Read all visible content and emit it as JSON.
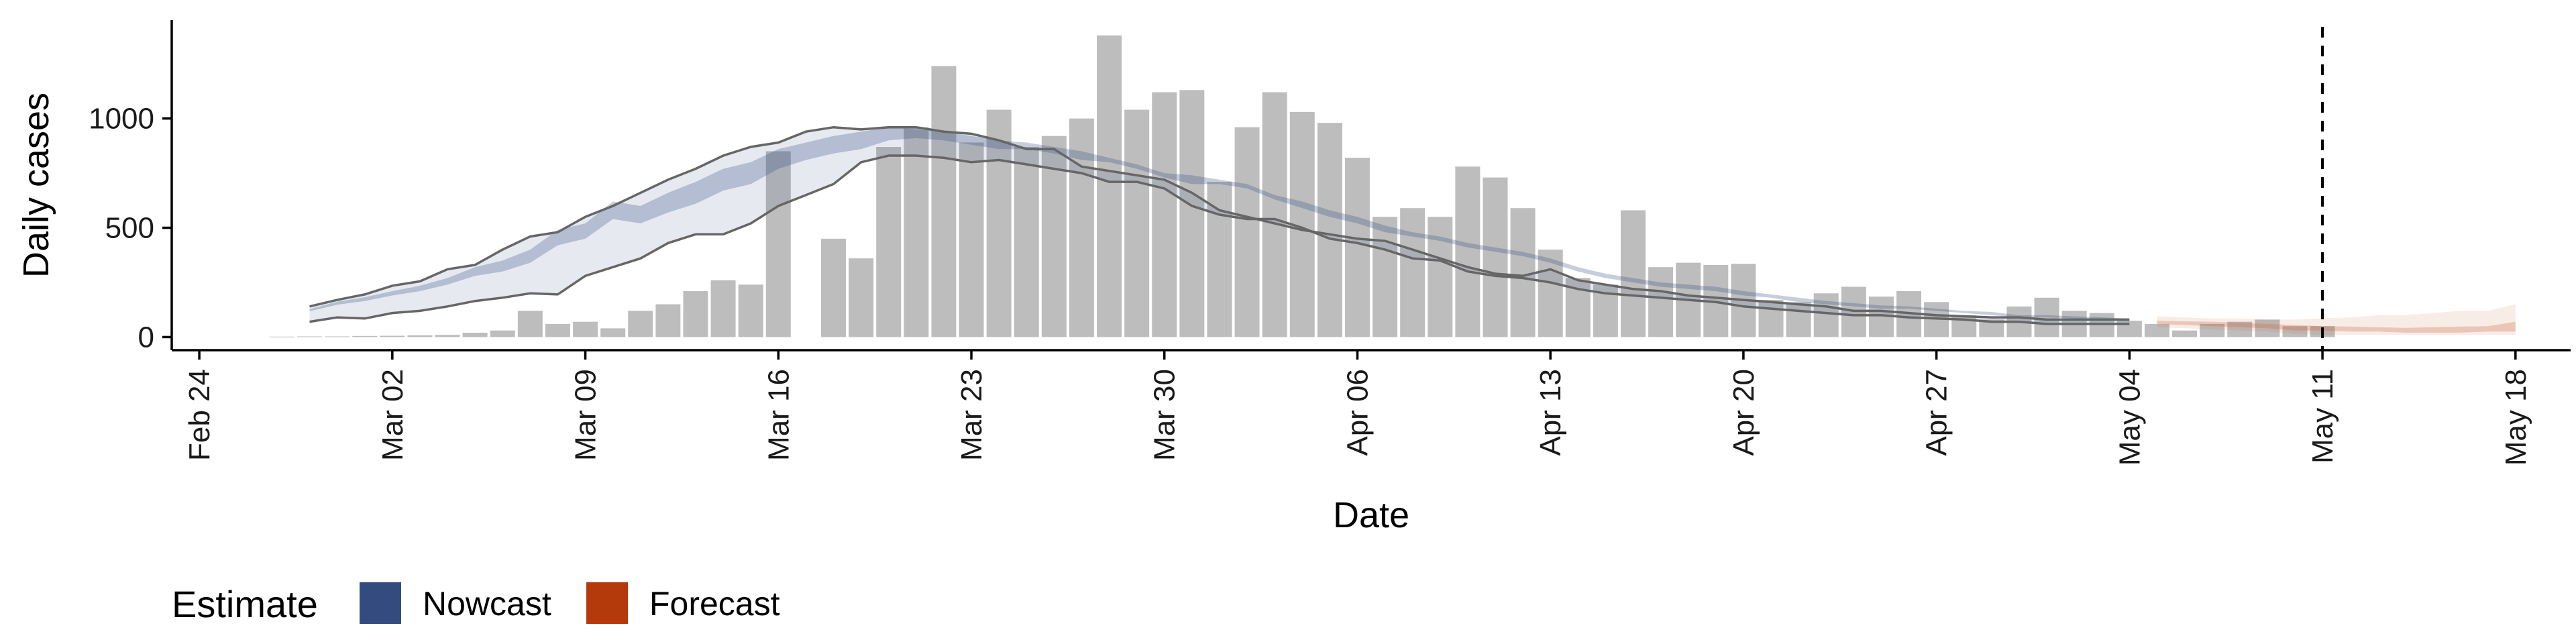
{
  "chart_data": {
    "type": "bar",
    "xlabel": "Date",
    "ylabel": "Daily cases",
    "x_tick_labels": [
      "Feb 24",
      "Mar 02",
      "Mar 09",
      "Mar 16",
      "Mar 23",
      "Mar 30",
      "Apr 06",
      "Apr 13",
      "Apr 20",
      "Apr 27",
      "May 04",
      "May 11",
      "May 18"
    ],
    "x_tick_dates": [
      "2020-02-24",
      "2020-03-02",
      "2020-03-09",
      "2020-03-16",
      "2020-03-23",
      "2020-03-30",
      "2020-04-06",
      "2020-04-13",
      "2020-04-20",
      "2020-04-27",
      "2020-05-04",
      "2020-05-11",
      "2020-05-18"
    ],
    "y_tick_labels": [
      "0",
      "500",
      "1000"
    ],
    "y_ticks": [
      0,
      500,
      1000
    ],
    "xlim": [
      "2020-02-23",
      "2020-05-20"
    ],
    "ylim": [
      -60,
      1450
    ],
    "grid": false,
    "vline_date": "2020-05-11",
    "legend": {
      "title": "Estimate",
      "position": "bottom-left",
      "entries": [
        {
          "label": "Nowcast",
          "color": "#344b80"
        },
        {
          "label": "Forecast",
          "color": "#b53a0b"
        }
      ]
    },
    "colors": {
      "bar": "#bdbdbd",
      "nowcast_band": "#344b80",
      "forecast_band": "#c8643c",
      "ci_line": "#666666",
      "axis": "#000000"
    },
    "reported_cases": {
      "start_date": "2020-02-27",
      "values": [
        2,
        3,
        3,
        5,
        6,
        8,
        10,
        20,
        30,
        120,
        60,
        70,
        40,
        120,
        150,
        210,
        260,
        240,
        850,
        null,
        450,
        360,
        870,
        960,
        1240,
        890,
        1040,
        870,
        920,
        1000,
        1380,
        1040,
        1120,
        1130,
        710,
        960,
        1120,
        1030,
        980,
        820,
        550,
        590,
        550,
        780,
        730,
        590,
        400,
        270,
        240,
        580,
        320,
        340,
        330,
        335,
        170,
        160,
        200,
        230,
        185,
        210,
        160,
        100,
        80,
        140,
        180,
        120,
        110,
        75,
        60,
        30,
        60,
        70,
        80,
        50,
        50
      ]
    },
    "nowcast": {
      "start_date": "2020-02-28",
      "inner_low": [
        118,
        148,
        165,
        190,
        210,
        240,
        280,
        300,
        340,
        420,
        450,
        540,
        520,
        570,
        610,
        670,
        700,
        770,
        810,
        840,
        860,
        900,
        910,
        900,
        880,
        860,
        860,
        840,
        810,
        800,
        770,
        730,
        700,
        700,
        680,
        630,
        590,
        550,
        520,
        480,
        460,
        440,
        410,
        390,
        370,
        340,
        300,
        270,
        250,
        230,
        220,
        210,
        190,
        180,
        160,
        150,
        140,
        130,
        130,
        120,
        110,
        100,
        90,
        90,
        85,
        80,
        80
      ],
      "inner_high": [
        128,
        162,
        182,
        210,
        235,
        270,
        320,
        350,
        400,
        490,
        520,
        620,
        600,
        660,
        710,
        770,
        800,
        860,
        890,
        920,
        940,
        960,
        950,
        940,
        920,
        900,
        890,
        870,
        850,
        820,
        790,
        750,
        740,
        720,
        700,
        650,
        620,
        580,
        550,
        510,
        480,
        460,
        430,
        410,
        390,
        360,
        320,
        290,
        270,
        250,
        240,
        230,
        210,
        195,
        180,
        165,
        155,
        145,
        140,
        130,
        120,
        115,
        100,
        100,
        95,
        90,
        85
      ],
      "outer_low": [
        70,
        90,
        85,
        110,
        120,
        140,
        165,
        180,
        200,
        195,
        280,
        320,
        360,
        430,
        470,
        470,
        520,
        600,
        650,
        700,
        800,
        830,
        830,
        820,
        800,
        810,
        790,
        770,
        750,
        710,
        710,
        680,
        600,
        560,
        540,
        540,
        500,
        450,
        430,
        400,
        360,
        350,
        300,
        280,
        270,
        250,
        220,
        200,
        190,
        180,
        170,
        160,
        140,
        130,
        120,
        110,
        100,
        100,
        90,
        85,
        80,
        70,
        70,
        60,
        60,
        60,
        60
      ],
      "outer_high": [
        140,
        170,
        195,
        235,
        255,
        310,
        330,
        400,
        460,
        480,
        550,
        600,
        660,
        720,
        770,
        830,
        870,
        890,
        940,
        960,
        950,
        960,
        960,
        940,
        930,
        900,
        860,
        860,
        780,
        760,
        740,
        720,
        660,
        580,
        550,
        520,
        490,
        470,
        450,
        440,
        400,
        360,
        320,
        290,
        280,
        310,
        260,
        240,
        220,
        210,
        190,
        180,
        170,
        160,
        150,
        140,
        120,
        120,
        110,
        100,
        95,
        90,
        90,
        80,
        80,
        80,
        80
      ]
    },
    "forecast": {
      "start_date": "2020-05-05",
      "inner_low": [
        60,
        55,
        50,
        45,
        40,
        30,
        30,
        25,
        25,
        20,
        20,
        20,
        25,
        25
      ],
      "inner_high": [
        75,
        72,
        70,
        65,
        60,
        55,
        50,
        48,
        45,
        42,
        45,
        48,
        50,
        70
      ],
      "outer_low": [
        45,
        40,
        35,
        30,
        25,
        15,
        10,
        10,
        10,
        10,
        10,
        10,
        10,
        10
      ],
      "outer_high": [
        95,
        90,
        85,
        85,
        80,
        80,
        85,
        90,
        100,
        100,
        110,
        120,
        120,
        150
      ]
    }
  }
}
